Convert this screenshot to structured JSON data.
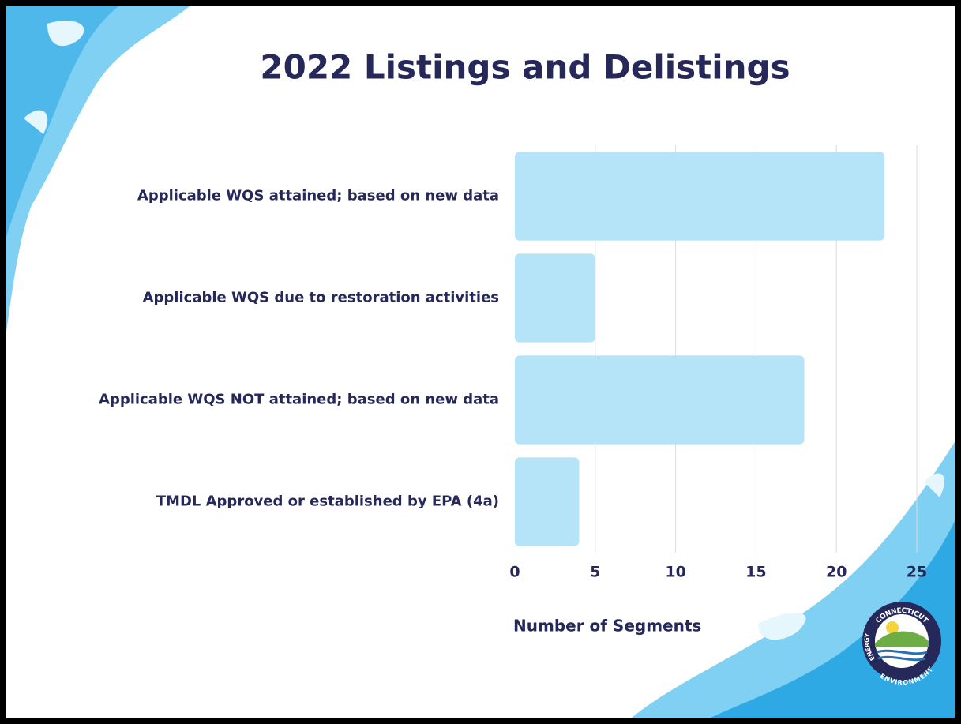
{
  "chart_data": {
    "type": "bar",
    "orientation": "horizontal",
    "title": "2022 Listings and Delistings",
    "categories": [
      "Applicable WQS attained; based on new data",
      "Applicable WQS due to restoration activities",
      "Applicable WQS NOT attained; based on new data",
      "TMDL Approved or established by EPA (4a)"
    ],
    "values": [
      23,
      5,
      18,
      4
    ],
    "color": "#b5e3f8",
    "xlabel": "Number of Segments",
    "xlim": [
      0,
      25
    ],
    "xticks": [
      0,
      5,
      10,
      15,
      20,
      25
    ],
    "grid": true
  },
  "logo": {
    "top": "CONNECTICUT",
    "left": "ENERGY",
    "bottom": "ENVIRONMENT"
  }
}
